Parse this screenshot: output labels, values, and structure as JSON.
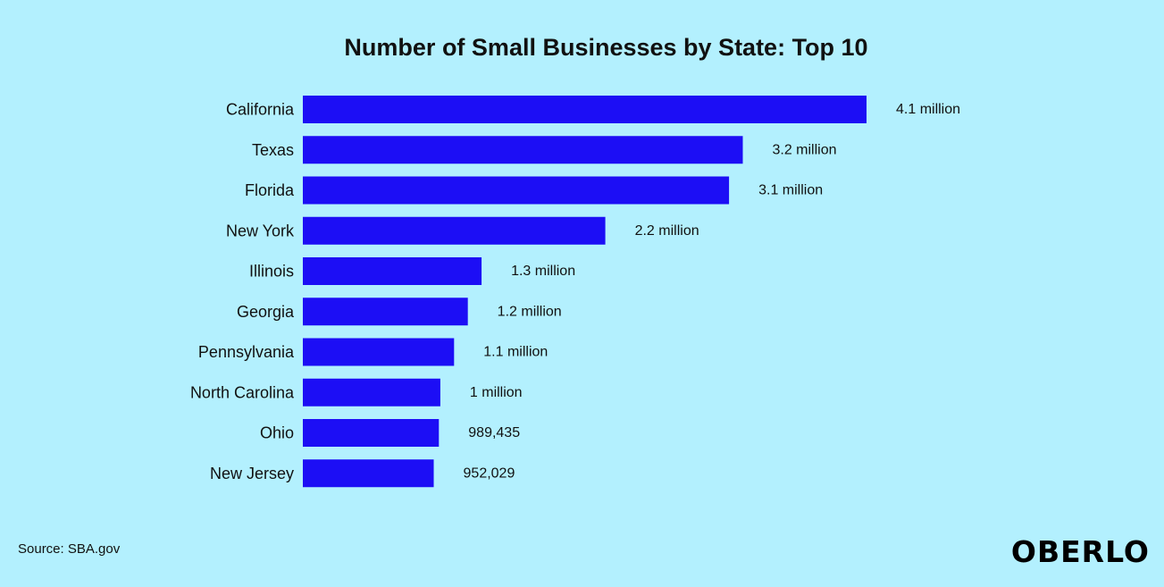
{
  "chart_data": {
    "type": "bar",
    "orientation": "horizontal",
    "title": "Number of Small Businesses by State: Top 10",
    "xlabel": "",
    "ylabel": "",
    "categories": [
      "California",
      "Texas",
      "Florida",
      "New York",
      "Illinois",
      "Georgia",
      "Pennsylvania",
      "North Carolina",
      "Ohio",
      "New Jersey"
    ],
    "values": [
      4100000,
      3200000,
      3100000,
      2200000,
      1300000,
      1200000,
      1100000,
      1000000,
      989435,
      952029
    ],
    "data_labels": [
      "4.1 million",
      "3.2 million",
      "3.1 million",
      "2.2 million",
      "1.3 million",
      "1.2 million",
      "1.1 million",
      "1 million",
      "989,435",
      "952,029"
    ],
    "xlim": [
      0,
      4100000
    ],
    "grid": false,
    "legend": "none",
    "bar_color": "#1c0ef5"
  },
  "source": "Source: SBA.gov",
  "brand": "OBERLO",
  "background_color": "#b3f0fe"
}
